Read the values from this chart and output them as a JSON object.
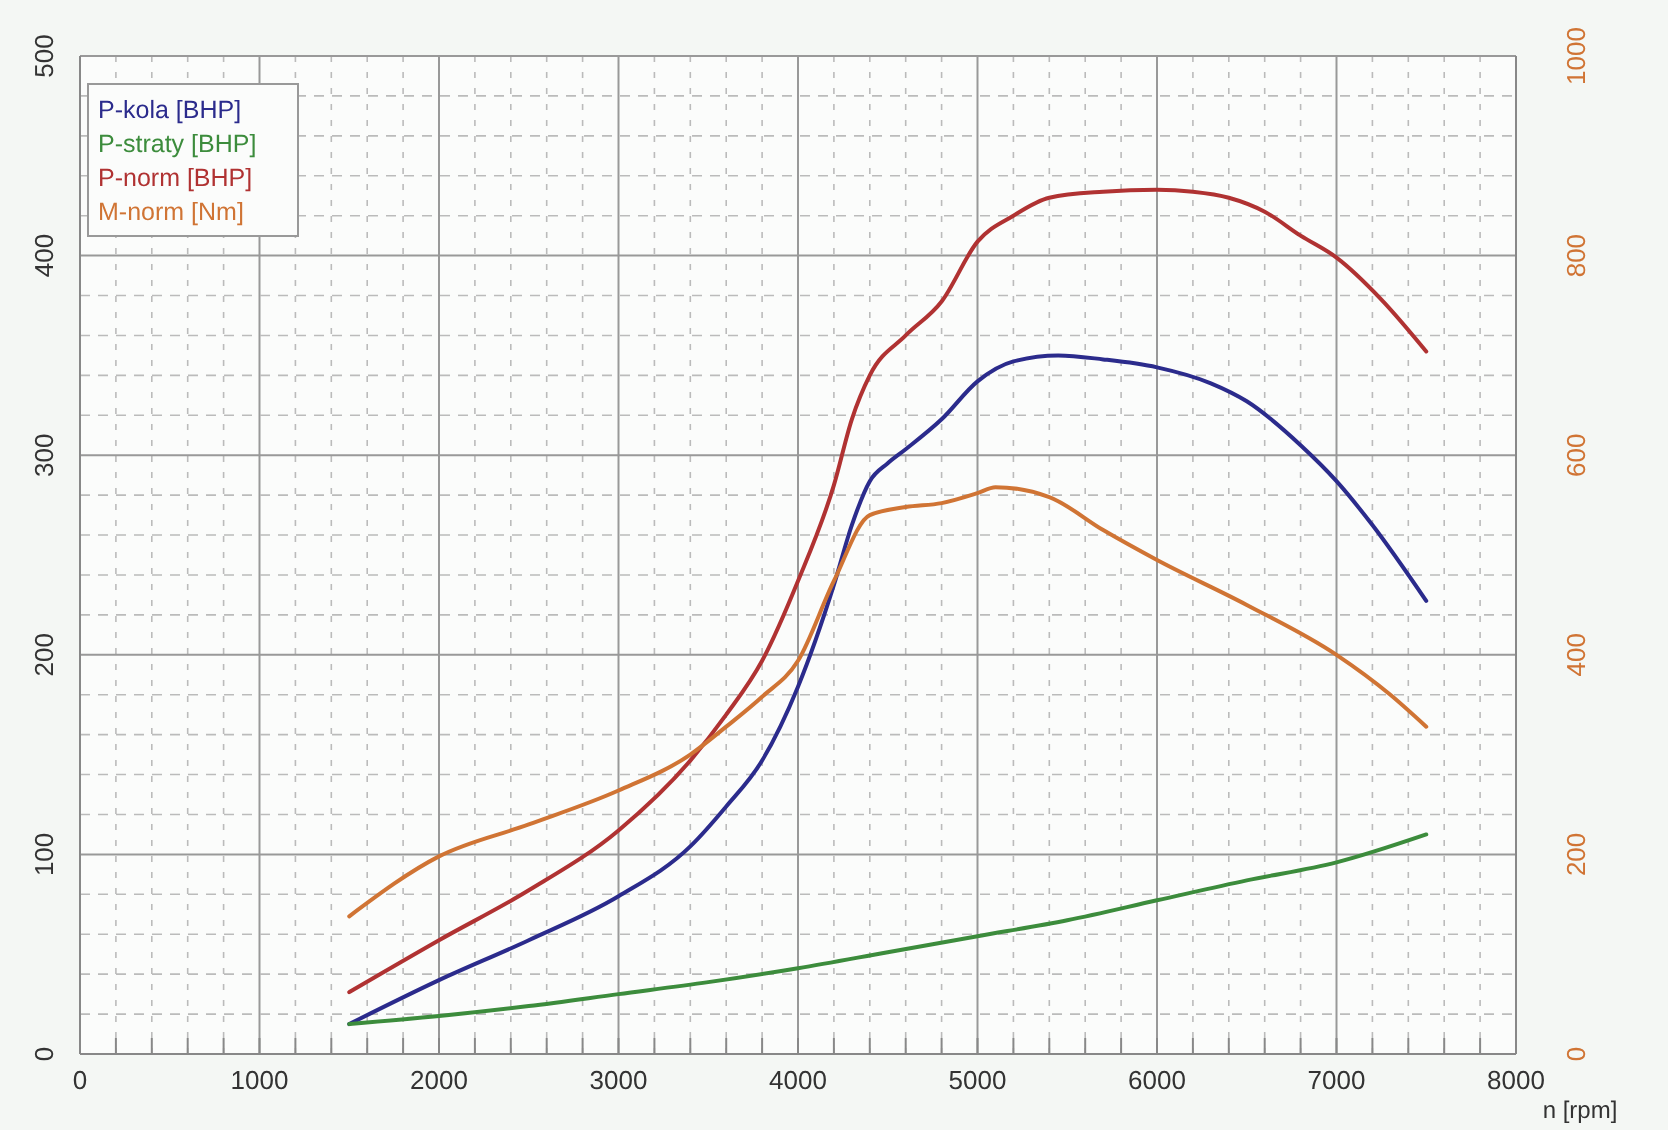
{
  "chart_data": {
    "type": "line",
    "xlabel": "n [rpm]",
    "legend": "top left",
    "grid": true,
    "line_style": "solid",
    "marker": "none",
    "xlim": [
      0,
      8000
    ],
    "ylim": [
      0,
      500
    ],
    "y2lim": [
      0,
      1000
    ],
    "xticks": [
      0,
      {
        "value": 200,
        "label": null
      },
      {
        "value": 400,
        "label": null
      },
      {
        "value": 600,
        "label": null
      },
      {
        "value": 800,
        "label": null
      },
      1000,
      {
        "value": 1200,
        "label": null
      },
      {
        "value": 1400,
        "label": null
      },
      {
        "value": 1600,
        "label": null
      },
      {
        "value": 1800,
        "label": null
      },
      2000,
      {
        "value": 2200,
        "label": null
      },
      {
        "value": 2400,
        "label": null
      },
      {
        "value": 2600,
        "label": null
      },
      {
        "value": 2800,
        "label": null
      },
      3000,
      {
        "value": 3200,
        "label": null
      },
      {
        "value": 3400,
        "label": null
      },
      {
        "value": 3600,
        "label": null
      },
      {
        "value": 3800,
        "label": null
      },
      4000,
      {
        "value": 4200,
        "label": null
      },
      {
        "value": 4400,
        "label": null
      },
      {
        "value": 4600,
        "label": null
      },
      {
        "value": 4800,
        "label": null
      },
      5000,
      {
        "value": 5200,
        "label": null
      },
      {
        "value": 5400,
        "label": null
      },
      {
        "value": 5600,
        "label": null
      },
      {
        "value": 5800,
        "label": null
      },
      6000,
      {
        "value": 6200,
        "label": null
      },
      {
        "value": 6400,
        "label": null
      },
      {
        "value": 6600,
        "label": null
      },
      {
        "value": 6800,
        "label": null
      },
      7000,
      {
        "value": 7200,
        "label": null
      },
      {
        "value": 7400,
        "label": null
      },
      {
        "value": 7600,
        "label": null
      },
      {
        "value": 7800,
        "label": null
      },
      8000
    ],
    "yticks": [
      0,
      {
        "value": 20,
        "label": null
      },
      {
        "value": 40,
        "label": null
      },
      {
        "value": 60,
        "label": null
      },
      {
        "value": 80,
        "label": null
      },
      100,
      {
        "value": 120,
        "label": null
      },
      {
        "value": 140,
        "label": null
      },
      {
        "value": 160,
        "label": null
      },
      {
        "value": 180,
        "label": null
      },
      200,
      {
        "value": 220,
        "label": null
      },
      {
        "value": 240,
        "label": null
      },
      {
        "value": 260,
        "label": null
      },
      {
        "value": 280,
        "label": null
      },
      300,
      {
        "value": 320,
        "label": null
      },
      {
        "value": 340,
        "label": null
      },
      {
        "value": 360,
        "label": null
      },
      {
        "value": 380,
        "label": null
      },
      400,
      {
        "value": 420,
        "label": null
      },
      {
        "value": 440,
        "label": null
      },
      {
        "value": 460,
        "label": null
      },
      {
        "value": 480,
        "label": null
      },
      500
    ],
    "y2ticks": [
      0,
      200,
      400,
      600,
      800,
      1000
    ],
    "series": [
      {
        "name": "P-kola [BHP]",
        "color": "#2b2b8c",
        "x": [
          1500,
          2000,
          2500,
          3000,
          3400,
          3600,
          3800,
          4000,
          4200,
          4300,
          4400,
          4500,
          4600,
          4800,
          5000,
          5200,
          5450,
          5700,
          6000,
          6300,
          6500,
          6800,
          7000,
          7200,
          7500
        ],
        "values": [
          15,
          37,
          57,
          79,
          104,
          124,
          147,
          184,
          235,
          265,
          287,
          296,
          303,
          318,
          337,
          347,
          350,
          348,
          344,
          336,
          327,
          305,
          287,
          265,
          227
        ]
      },
      {
        "name": "P-straty [BHP]",
        "color": "#3c8c3c",
        "x": [
          1500,
          2000,
          2500,
          3000,
          3500,
          4000,
          4500,
          5000,
          5500,
          6000,
          6500,
          7000,
          7500
        ],
        "values": [
          15,
          19,
          24,
          30,
          36,
          43,
          51,
          59,
          67,
          77,
          87,
          96,
          110
        ]
      },
      {
        "name": "P-norm [BHP]",
        "color": "#b03232",
        "x": [
          1500,
          2000,
          2500,
          3000,
          3400,
          3600,
          3800,
          4000,
          4200,
          4300,
          4400,
          4600,
          4800,
          5000,
          5200,
          5400,
          5700,
          6000,
          6200,
          6400,
          6600,
          6800,
          7000,
          7250,
          7500
        ],
        "values": [
          31,
          57,
          82,
          112,
          147,
          170,
          197,
          237,
          285,
          318,
          340,
          360,
          377,
          407,
          420,
          429,
          432,
          433,
          432,
          429,
          422,
          410,
          399,
          378,
          352
        ]
      },
      {
        "name": "M-norm [Nm]",
        "color": "#d07434",
        "axis": "y2",
        "x": [
          1500,
          2000,
          2500,
          3000,
          3400,
          3600,
          3800,
          4000,
          4200,
          4400,
          4600,
          4800,
          5000,
          5100,
          5400,
          5700,
          6000,
          6500,
          7000,
          7300,
          7500
        ],
        "values": [
          138,
          198,
          230,
          264,
          300,
          328,
          358,
          394,
          474,
          540,
          548,
          552,
          562,
          568,
          558,
          525,
          495,
          450,
          400,
          360,
          328
        ]
      }
    ]
  }
}
